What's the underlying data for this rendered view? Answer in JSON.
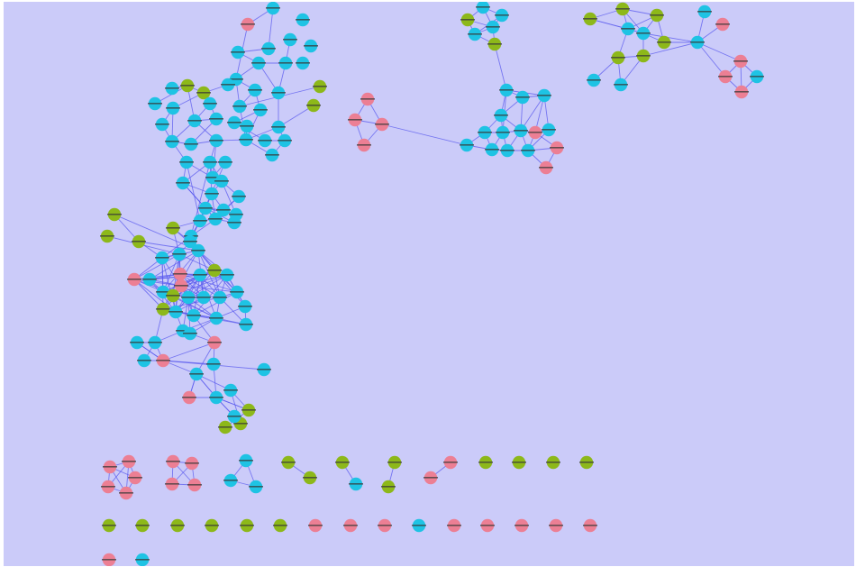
{
  "colors": {
    "background": "#cbcbf9",
    "edge": "#5a5aee",
    "cyan": "#1ec3e4",
    "green": "#8db81a",
    "pink": "#ec7f94"
  }
}
